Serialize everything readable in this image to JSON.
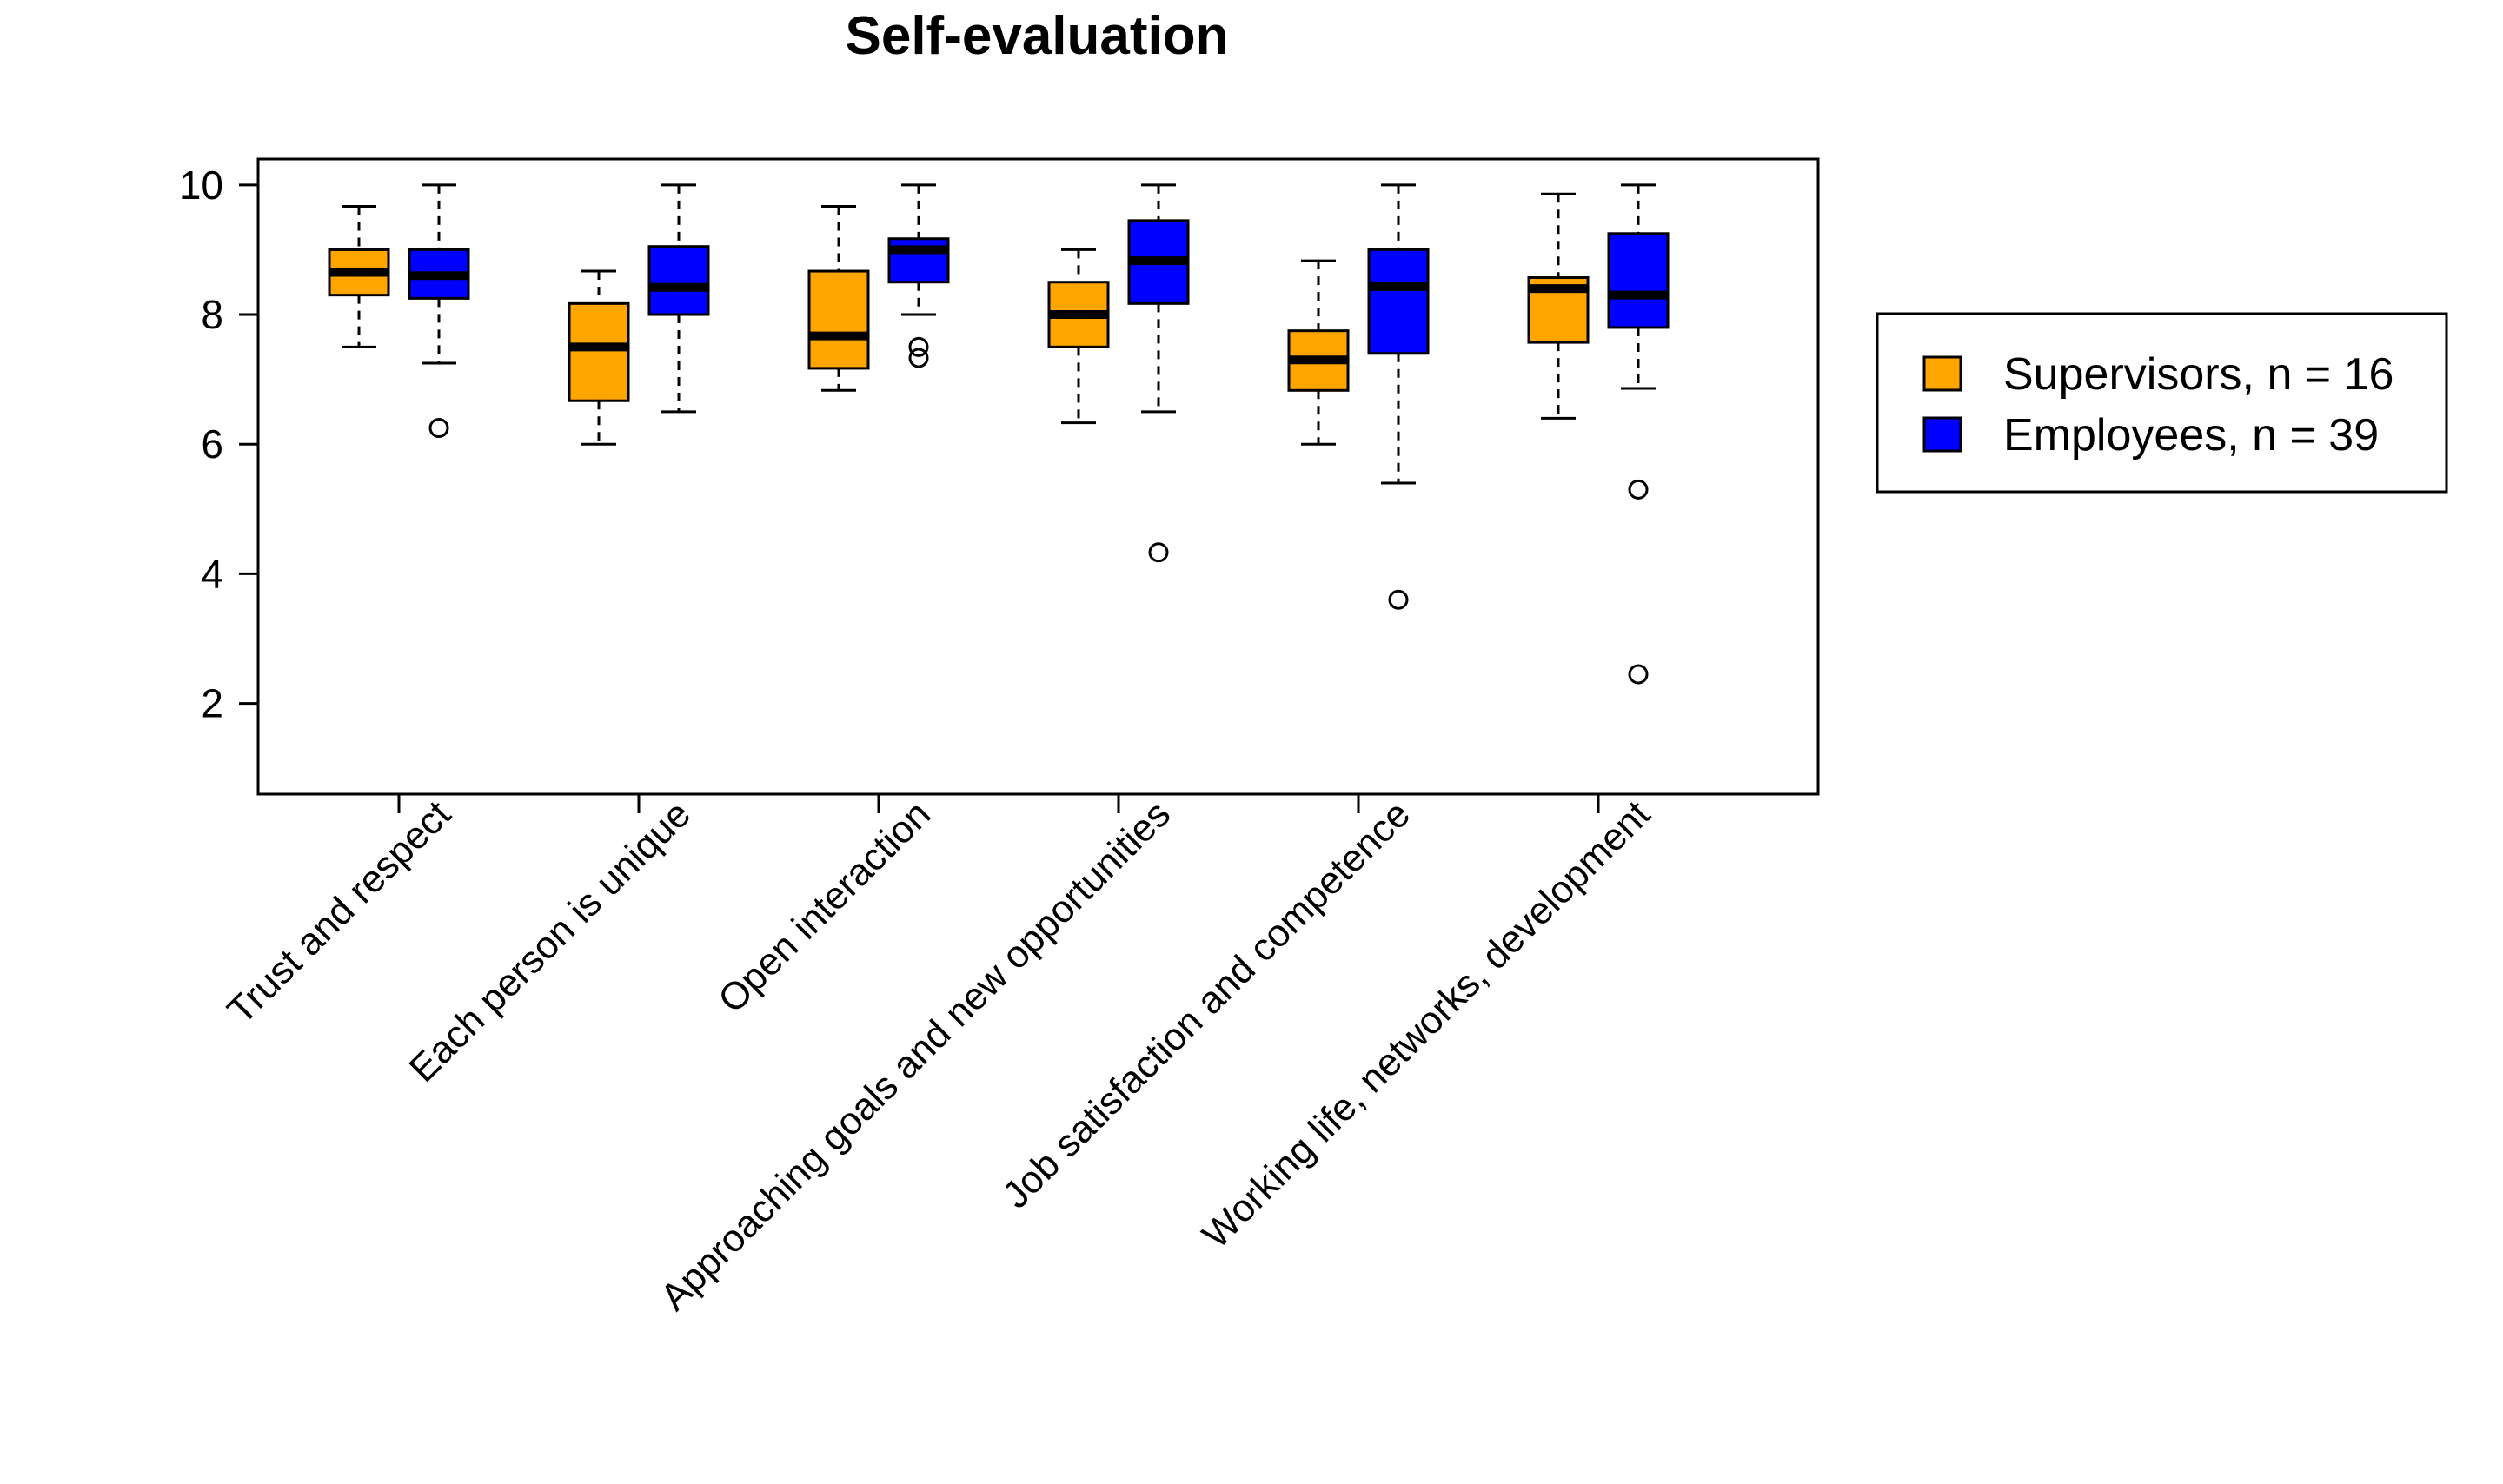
{
  "chart_data": {
    "type": "boxplot",
    "title": "Self-evaluation",
    "xlabel": "",
    "ylabel": "",
    "ylim": [
      0.6,
      10.4
    ],
    "yticks": [
      2,
      4,
      6,
      8,
      10
    ],
    "categories": [
      "Trust and respect",
      "Each person is unique",
      "Open interaction",
      "Approaching goals and new opportunities",
      "Job satisfaction and competence",
      "Working life, networks, development"
    ],
    "series": [
      {
        "name": "Supervisors, n = 16",
        "color": "#FFA500",
        "boxes": [
          {
            "whisker_low": 7.5,
            "q1": 8.3,
            "median": 8.65,
            "q3": 9.0,
            "whisker_high": 9.67,
            "outliers": []
          },
          {
            "whisker_low": 6.0,
            "q1": 6.67,
            "median": 7.5,
            "q3": 8.17,
            "whisker_high": 8.67,
            "outliers": []
          },
          {
            "whisker_low": 6.83,
            "q1": 7.17,
            "median": 7.67,
            "q3": 8.67,
            "whisker_high": 9.67,
            "outliers": []
          },
          {
            "whisker_low": 6.33,
            "q1": 7.5,
            "median": 8.0,
            "q3": 8.5,
            "whisker_high": 9.0,
            "outliers": []
          },
          {
            "whisker_low": 6.0,
            "q1": 6.83,
            "median": 7.3,
            "q3": 7.75,
            "whisker_high": 8.83,
            "outliers": []
          },
          {
            "whisker_low": 6.4,
            "q1": 7.57,
            "median": 8.4,
            "q3": 8.57,
            "whisker_high": 9.86,
            "outliers": []
          }
        ]
      },
      {
        "name": "Employees, n = 39",
        "color": "#0000FF",
        "boxes": [
          {
            "whisker_low": 7.25,
            "q1": 8.25,
            "median": 8.6,
            "q3": 9.0,
            "whisker_high": 10.0,
            "outliers": [
              6.25
            ]
          },
          {
            "whisker_low": 6.5,
            "q1": 8.0,
            "median": 8.42,
            "q3": 9.05,
            "whisker_high": 10.0,
            "outliers": []
          },
          {
            "whisker_low": 8.0,
            "q1": 8.5,
            "median": 9.0,
            "q3": 9.17,
            "whisker_high": 10.0,
            "outliers": [
              7.33,
              7.5
            ]
          },
          {
            "whisker_low": 6.5,
            "q1": 8.17,
            "median": 8.83,
            "q3": 9.45,
            "whisker_high": 10.0,
            "outliers": [
              4.33
            ]
          },
          {
            "whisker_low": 5.4,
            "q1": 7.4,
            "median": 8.43,
            "q3": 9.0,
            "whisker_high": 10.0,
            "outliers": [
              3.6
            ]
          },
          {
            "whisker_low": 6.86,
            "q1": 7.8,
            "median": 8.3,
            "q3": 9.25,
            "whisker_high": 10.0,
            "outliers": [
              5.3,
              2.45
            ]
          }
        ]
      }
    ],
    "legend": {
      "position": "right",
      "entries": [
        "Supervisors, n = 16",
        "Employees, n = 39"
      ]
    }
  }
}
